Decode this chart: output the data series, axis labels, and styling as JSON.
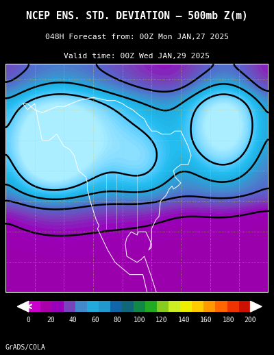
{
  "title_line1": "NCEP ENS. STD. DEVIATION – 500mb Z(m)",
  "title_line2": "048H Forecast from: 00Z Mon JAN,27 2025",
  "title_line3": "Valid time: 00Z Wed JAN,29 2025",
  "background_color": "#000000",
  "map_bg_color": "#880088",
  "colorbar_colors": [
    "#cc00cc",
    "#aa00aa",
    "#9900bb",
    "#7744bb",
    "#4488cc",
    "#22aadd",
    "#2299cc",
    "#1166aa",
    "#116677",
    "#118844",
    "#22aa22",
    "#88cc22",
    "#ccee22",
    "#eeee00",
    "#ffcc00",
    "#ff9900",
    "#ff6600",
    "#ee3300",
    "#cc1100"
  ],
  "colorbar_ticks": [
    0,
    20,
    40,
    60,
    80,
    100,
    120,
    140,
    160,
    180,
    200
  ],
  "grads_label": "GrADS/COLA",
  "fig_width": 4.0,
  "fig_height": 5.18
}
